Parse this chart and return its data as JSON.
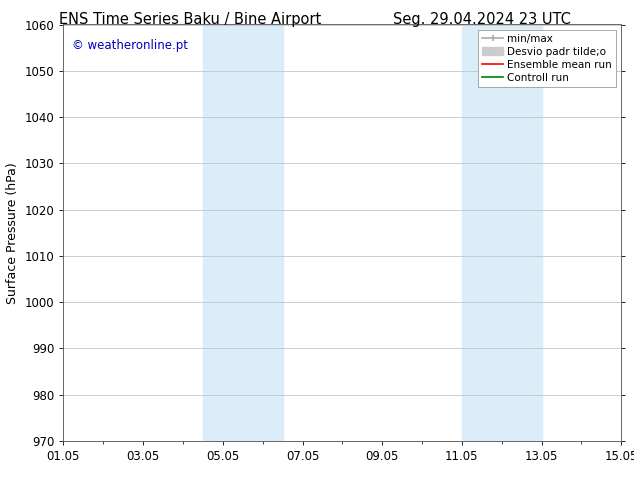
{
  "title_left": "ENS Time Series Baku / Bine Airport",
  "title_right": "Seg. 29.04.2024 23 UTC",
  "ylabel": "Surface Pressure (hPa)",
  "ylim": [
    970,
    1060
  ],
  "yticks": [
    970,
    980,
    990,
    1000,
    1010,
    1020,
    1030,
    1040,
    1050,
    1060
  ],
  "xlim": [
    0,
    14
  ],
  "xtick_labels": [
    "01.05",
    "03.05",
    "05.05",
    "07.05",
    "09.05",
    "11.05",
    "13.05",
    "15.05"
  ],
  "xtick_positions": [
    0,
    2,
    4,
    6,
    8,
    10,
    12,
    14
  ],
  "shaded_regions": [
    {
      "start": 3.5,
      "end": 5.5,
      "color": "#daedf8"
    },
    {
      "start": 10.0,
      "end": 12.0,
      "color": "#daedf8"
    }
  ],
  "watermark_text": "© weatheronline.pt",
  "watermark_color": "#0000bb",
  "legend_labels": [
    "min/max",
    "Desvio padr tilde;o",
    "Ensemble mean run",
    "Controll run"
  ],
  "legend_colors": [
    "#aaaaaa",
    "#cccccc",
    "#ff0000",
    "#008000"
  ],
  "bg_color": "#ffffff",
  "plot_bg_color": "#ffffff",
  "grid_color": "#bbbbbb",
  "title_fontsize": 10.5,
  "tick_fontsize": 8.5,
  "ylabel_fontsize": 9,
  "watermark_fontsize": 8.5,
  "legend_fontsize": 7.5
}
